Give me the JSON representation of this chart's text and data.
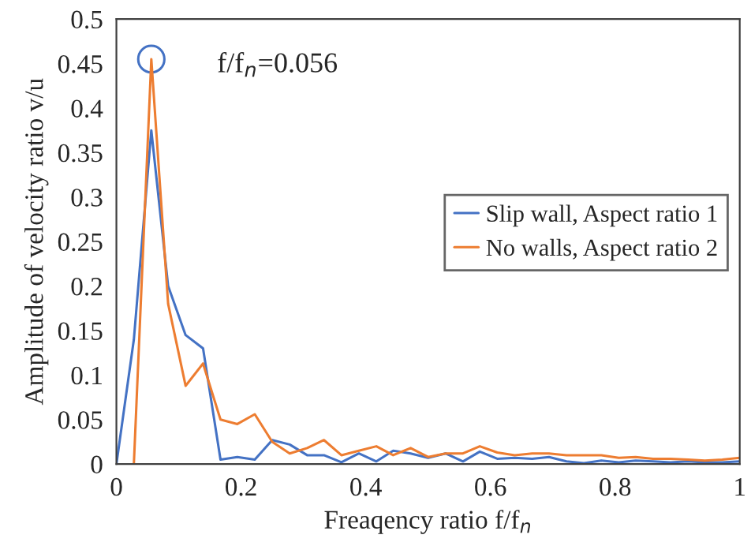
{
  "chart_data": {
    "type": "line",
    "xlabel": "Freaqency ratio f/f$_{n}$",
    "ylabel": "Amplitude of velocity ratio v/u",
    "x": [
      0,
      0.028,
      0.056,
      0.083,
      0.111,
      0.139,
      0.167,
      0.194,
      0.222,
      0.25,
      0.278,
      0.306,
      0.333,
      0.361,
      0.389,
      0.417,
      0.444,
      0.472,
      0.5,
      0.528,
      0.556,
      0.583,
      0.611,
      0.639,
      0.667,
      0.694,
      0.722,
      0.75,
      0.778,
      0.806,
      0.833,
      0.861,
      0.889,
      0.917,
      0.944,
      0.972,
      1
    ],
    "series": [
      {
        "name": "Slip wall, Aspect ratio 1",
        "color": "#4472c4",
        "values": [
          0,
          0.14,
          0.375,
          0.2,
          0.145,
          0.13,
          0.005,
          0.008,
          0.005,
          0.027,
          0.022,
          0.01,
          0.01,
          0.002,
          0.012,
          0.003,
          0.015,
          0.012,
          0.007,
          0.012,
          0.003,
          0.014,
          0.006,
          0.007,
          0.006,
          0.008,
          0.003,
          0.001,
          0.004,
          0.002,
          0.004,
          0.003,
          0.002,
          0.003,
          0.002,
          0.002,
          0.003
        ]
      },
      {
        "name": "No walls, Aspect ratio 2",
        "color": "#ed7d31",
        "values": [
          null,
          0,
          0.455,
          0.18,
          0.088,
          0.113,
          0.05,
          0.045,
          0.056,
          0.025,
          0.012,
          0.018,
          0.027,
          0.01,
          0.015,
          0.02,
          0.01,
          0.018,
          0.008,
          0.012,
          0.012,
          0.02,
          0.013,
          0.01,
          0.012,
          0.012,
          0.01,
          0.01,
          0.01,
          0.007,
          0.008,
          0.006,
          0.006,
          0.005,
          0.004,
          0.005,
          0.007
        ]
      }
    ],
    "xlim": [
      0,
      1
    ],
    "xticks": [
      0,
      0.2,
      0.4,
      0.6,
      0.8,
      1
    ],
    "ylim": [
      0,
      0.5
    ],
    "yticks": [
      0,
      0.05,
      0.1,
      0.15,
      0.2,
      0.25,
      0.3,
      0.35,
      0.4,
      0.45,
      0.5
    ],
    "annotations": [
      {
        "text": "f/f$_{n}$=0.056",
        "x": 0.056,
        "y": 0.455
      }
    ],
    "grid": false,
    "legend": "right",
    "marker": "none",
    "line_style": "solid"
  }
}
